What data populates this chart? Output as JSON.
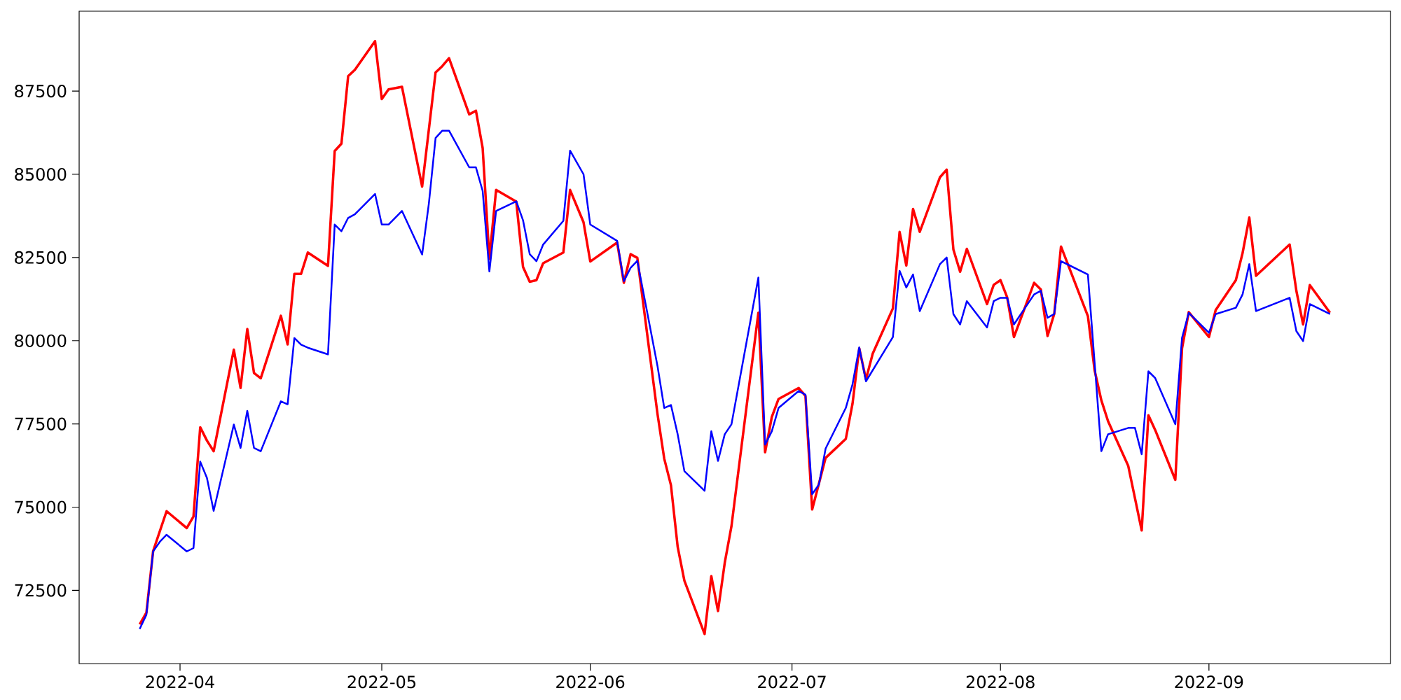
{
  "chart_data": {
    "type": "line",
    "xlim": [
      "2022-03-17",
      "2022-09-28"
    ],
    "ylim": [
      70300,
      89900
    ],
    "xticks": [
      "2022-04",
      "2022-05",
      "2022-06",
      "2022-07",
      "2022-08",
      "2022-09"
    ],
    "yticks": [
      72500,
      75000,
      77500,
      80000,
      82500,
      85000,
      87500
    ],
    "series": [
      {
        "color": "#ff0000",
        "x": [
          "2022-03-26",
          "2022-03-27",
          "2022-03-28",
          "2022-03-30",
          "2022-04-02",
          "2022-04-03",
          "2022-04-04",
          "2022-04-05",
          "2022-04-06",
          "2022-04-09",
          "2022-04-10",
          "2022-04-11",
          "2022-04-12",
          "2022-04-13",
          "2022-04-16",
          "2022-04-17",
          "2022-04-18",
          "2022-04-19",
          "2022-04-20",
          "2022-04-23",
          "2022-04-24",
          "2022-04-25",
          "2022-04-26",
          "2022-04-27",
          "2022-04-30",
          "2022-05-01",
          "2022-05-02",
          "2022-05-04",
          "2022-05-07",
          "2022-05-09",
          "2022-05-10",
          "2022-05-11",
          "2022-05-14",
          "2022-05-15",
          "2022-05-16",
          "2022-05-17",
          "2022-05-18",
          "2022-05-21",
          "2022-05-22",
          "2022-05-23",
          "2022-05-24",
          "2022-05-25",
          "2022-05-28",
          "2022-05-29",
          "2022-05-31",
          "2022-06-01",
          "2022-06-05",
          "2022-06-06",
          "2022-06-07",
          "2022-06-08",
          "2022-06-11",
          "2022-06-12",
          "2022-06-13",
          "2022-06-14",
          "2022-06-15",
          "2022-06-18",
          "2022-06-19",
          "2022-06-20",
          "2022-06-21",
          "2022-06-22",
          "2022-06-26",
          "2022-06-27",
          "2022-06-28",
          "2022-06-29",
          "2022-07-02",
          "2022-07-03",
          "2022-07-04",
          "2022-07-06",
          "2022-07-09",
          "2022-07-10",
          "2022-07-11",
          "2022-07-12",
          "2022-07-13",
          "2022-07-16",
          "2022-07-17",
          "2022-07-18",
          "2022-07-19",
          "2022-07-20",
          "2022-07-23",
          "2022-07-24",
          "2022-07-25",
          "2022-07-26",
          "2022-07-27",
          "2022-07-30",
          "2022-07-31",
          "2022-08-01",
          "2022-08-02",
          "2022-08-03",
          "2022-08-06",
          "2022-08-07",
          "2022-08-08",
          "2022-08-09",
          "2022-08-10",
          "2022-08-14",
          "2022-08-15",
          "2022-08-16",
          "2022-08-17",
          "2022-08-20",
          "2022-08-22",
          "2022-08-23",
          "2022-08-24",
          "2022-08-27",
          "2022-08-28",
          "2022-08-29",
          "2022-09-01",
          "2022-09-02",
          "2022-09-05",
          "2022-09-06",
          "2022-09-07",
          "2022-09-08",
          "2022-09-13",
          "2022-09-14",
          "2022-09-15",
          "2022-09-16",
          "2022-09-19"
        ],
        "values": [
          71480,
          71830,
          73680,
          74880,
          74370,
          74720,
          77400,
          77000,
          76680,
          79730,
          78580,
          80350,
          79030,
          78870,
          80750,
          79890,
          82010,
          82010,
          82650,
          82250,
          85700,
          85920,
          87950,
          88140,
          89000,
          87260,
          87550,
          87630,
          84630,
          88060,
          88250,
          88490,
          86800,
          86910,
          85790,
          82460,
          84530,
          84180,
          82220,
          81770,
          81820,
          82330,
          82650,
          84530,
          83560,
          82380,
          82950,
          81740,
          82600,
          82490,
          77800,
          76460,
          75660,
          73810,
          72790,
          71190,
          72930,
          71880,
          73330,
          74430,
          80840,
          76650,
          77710,
          78250,
          78580,
          78340,
          74930,
          76480,
          77050,
          78110,
          79770,
          78840,
          79610,
          80970,
          83270,
          82260,
          83960,
          83270,
          84910,
          85140,
          82740,
          82070,
          82760,
          81100,
          81680,
          81820,
          81300,
          80110,
          81740,
          81540,
          80140,
          80810,
          82830,
          80740,
          79110,
          78210,
          77580,
          76240,
          74300,
          77760,
          77320,
          75820,
          79770,
          80860,
          80110,
          80920,
          81820,
          82630,
          83700,
          81950,
          82890,
          81500,
          80490,
          81670,
          80840
        ]
      },
      {
        "color": "#0000ff",
        "x": [
          "2022-03-26",
          "2022-03-27",
          "2022-03-28",
          "2022-03-29",
          "2022-03-30",
          "2022-04-02",
          "2022-04-03",
          "2022-04-04",
          "2022-04-05",
          "2022-04-06",
          "2022-04-09",
          "2022-04-10",
          "2022-04-11",
          "2022-04-12",
          "2022-04-13",
          "2022-04-16",
          "2022-04-17",
          "2022-04-18",
          "2022-04-19",
          "2022-04-20",
          "2022-04-23",
          "2022-04-24",
          "2022-04-25",
          "2022-04-26",
          "2022-04-27",
          "2022-04-30",
          "2022-05-01",
          "2022-05-02",
          "2022-05-04",
          "2022-05-07",
          "2022-05-08",
          "2022-05-09",
          "2022-05-10",
          "2022-05-11",
          "2022-05-14",
          "2022-05-15",
          "2022-05-16",
          "2022-05-17",
          "2022-05-18",
          "2022-05-21",
          "2022-05-22",
          "2022-05-23",
          "2022-05-24",
          "2022-05-25",
          "2022-05-28",
          "2022-05-29",
          "2022-05-31",
          "2022-06-01",
          "2022-06-05",
          "2022-06-06",
          "2022-06-07",
          "2022-06-08",
          "2022-06-11",
          "2022-06-12",
          "2022-06-13",
          "2022-06-14",
          "2022-06-15",
          "2022-06-18",
          "2022-06-19",
          "2022-06-20",
          "2022-06-21",
          "2022-06-22",
          "2022-06-26",
          "2022-06-27",
          "2022-06-28",
          "2022-06-29",
          "2022-07-02",
          "2022-07-03",
          "2022-07-04",
          "2022-07-05",
          "2022-07-06",
          "2022-07-09",
          "2022-07-10",
          "2022-07-11",
          "2022-07-12",
          "2022-07-16",
          "2022-07-17",
          "2022-07-18",
          "2022-07-19",
          "2022-07-20",
          "2022-07-23",
          "2022-07-24",
          "2022-07-25",
          "2022-07-26",
          "2022-07-27",
          "2022-07-30",
          "2022-07-31",
          "2022-08-01",
          "2022-08-02",
          "2022-08-03",
          "2022-08-06",
          "2022-08-07",
          "2022-08-08",
          "2022-08-09",
          "2022-08-10",
          "2022-08-14",
          "2022-08-16",
          "2022-08-17",
          "2022-08-20",
          "2022-08-21",
          "2022-08-22",
          "2022-08-23",
          "2022-08-24",
          "2022-08-27",
          "2022-08-28",
          "2022-08-29",
          "2022-09-01",
          "2022-09-02",
          "2022-09-05",
          "2022-09-06",
          "2022-09-07",
          "2022-09-08",
          "2022-09-13",
          "2022-09-14",
          "2022-09-15",
          "2022-09-16",
          "2022-09-19"
        ],
        "values": [
          71340,
          71770,
          73670,
          73960,
          74170,
          73670,
          73770,
          76370,
          75880,
          74890,
          77480,
          76780,
          77890,
          76780,
          76680,
          78180,
          78090,
          80080,
          79880,
          79790,
          79590,
          83490,
          83290,
          83690,
          83800,
          84410,
          83490,
          83490,
          83900,
          82590,
          84120,
          86090,
          86310,
          86310,
          85210,
          85210,
          84500,
          82080,
          83900,
          84190,
          83620,
          82600,
          82390,
          82890,
          83600,
          85710,
          85000,
          83490,
          83000,
          81790,
          82190,
          82400,
          79240,
          77980,
          78070,
          77190,
          76080,
          75490,
          77280,
          76390,
          77190,
          77490,
          81900,
          76880,
          77280,
          77980,
          78490,
          78380,
          75390,
          75680,
          76760,
          77980,
          78690,
          79800,
          78780,
          80110,
          82100,
          81600,
          81990,
          80890,
          82300,
          82500,
          80800,
          80490,
          81190,
          80400,
          81190,
          81290,
          81290,
          80490,
          81390,
          81500,
          80690,
          80800,
          82390,
          81990,
          76680,
          77190,
          77380,
          77380,
          76590,
          79080,
          78880,
          77490,
          80090,
          80840,
          80240,
          80800,
          80990,
          81390,
          82300,
          80890,
          81290,
          80290,
          79990,
          81100,
          80800
        ]
      }
    ]
  }
}
